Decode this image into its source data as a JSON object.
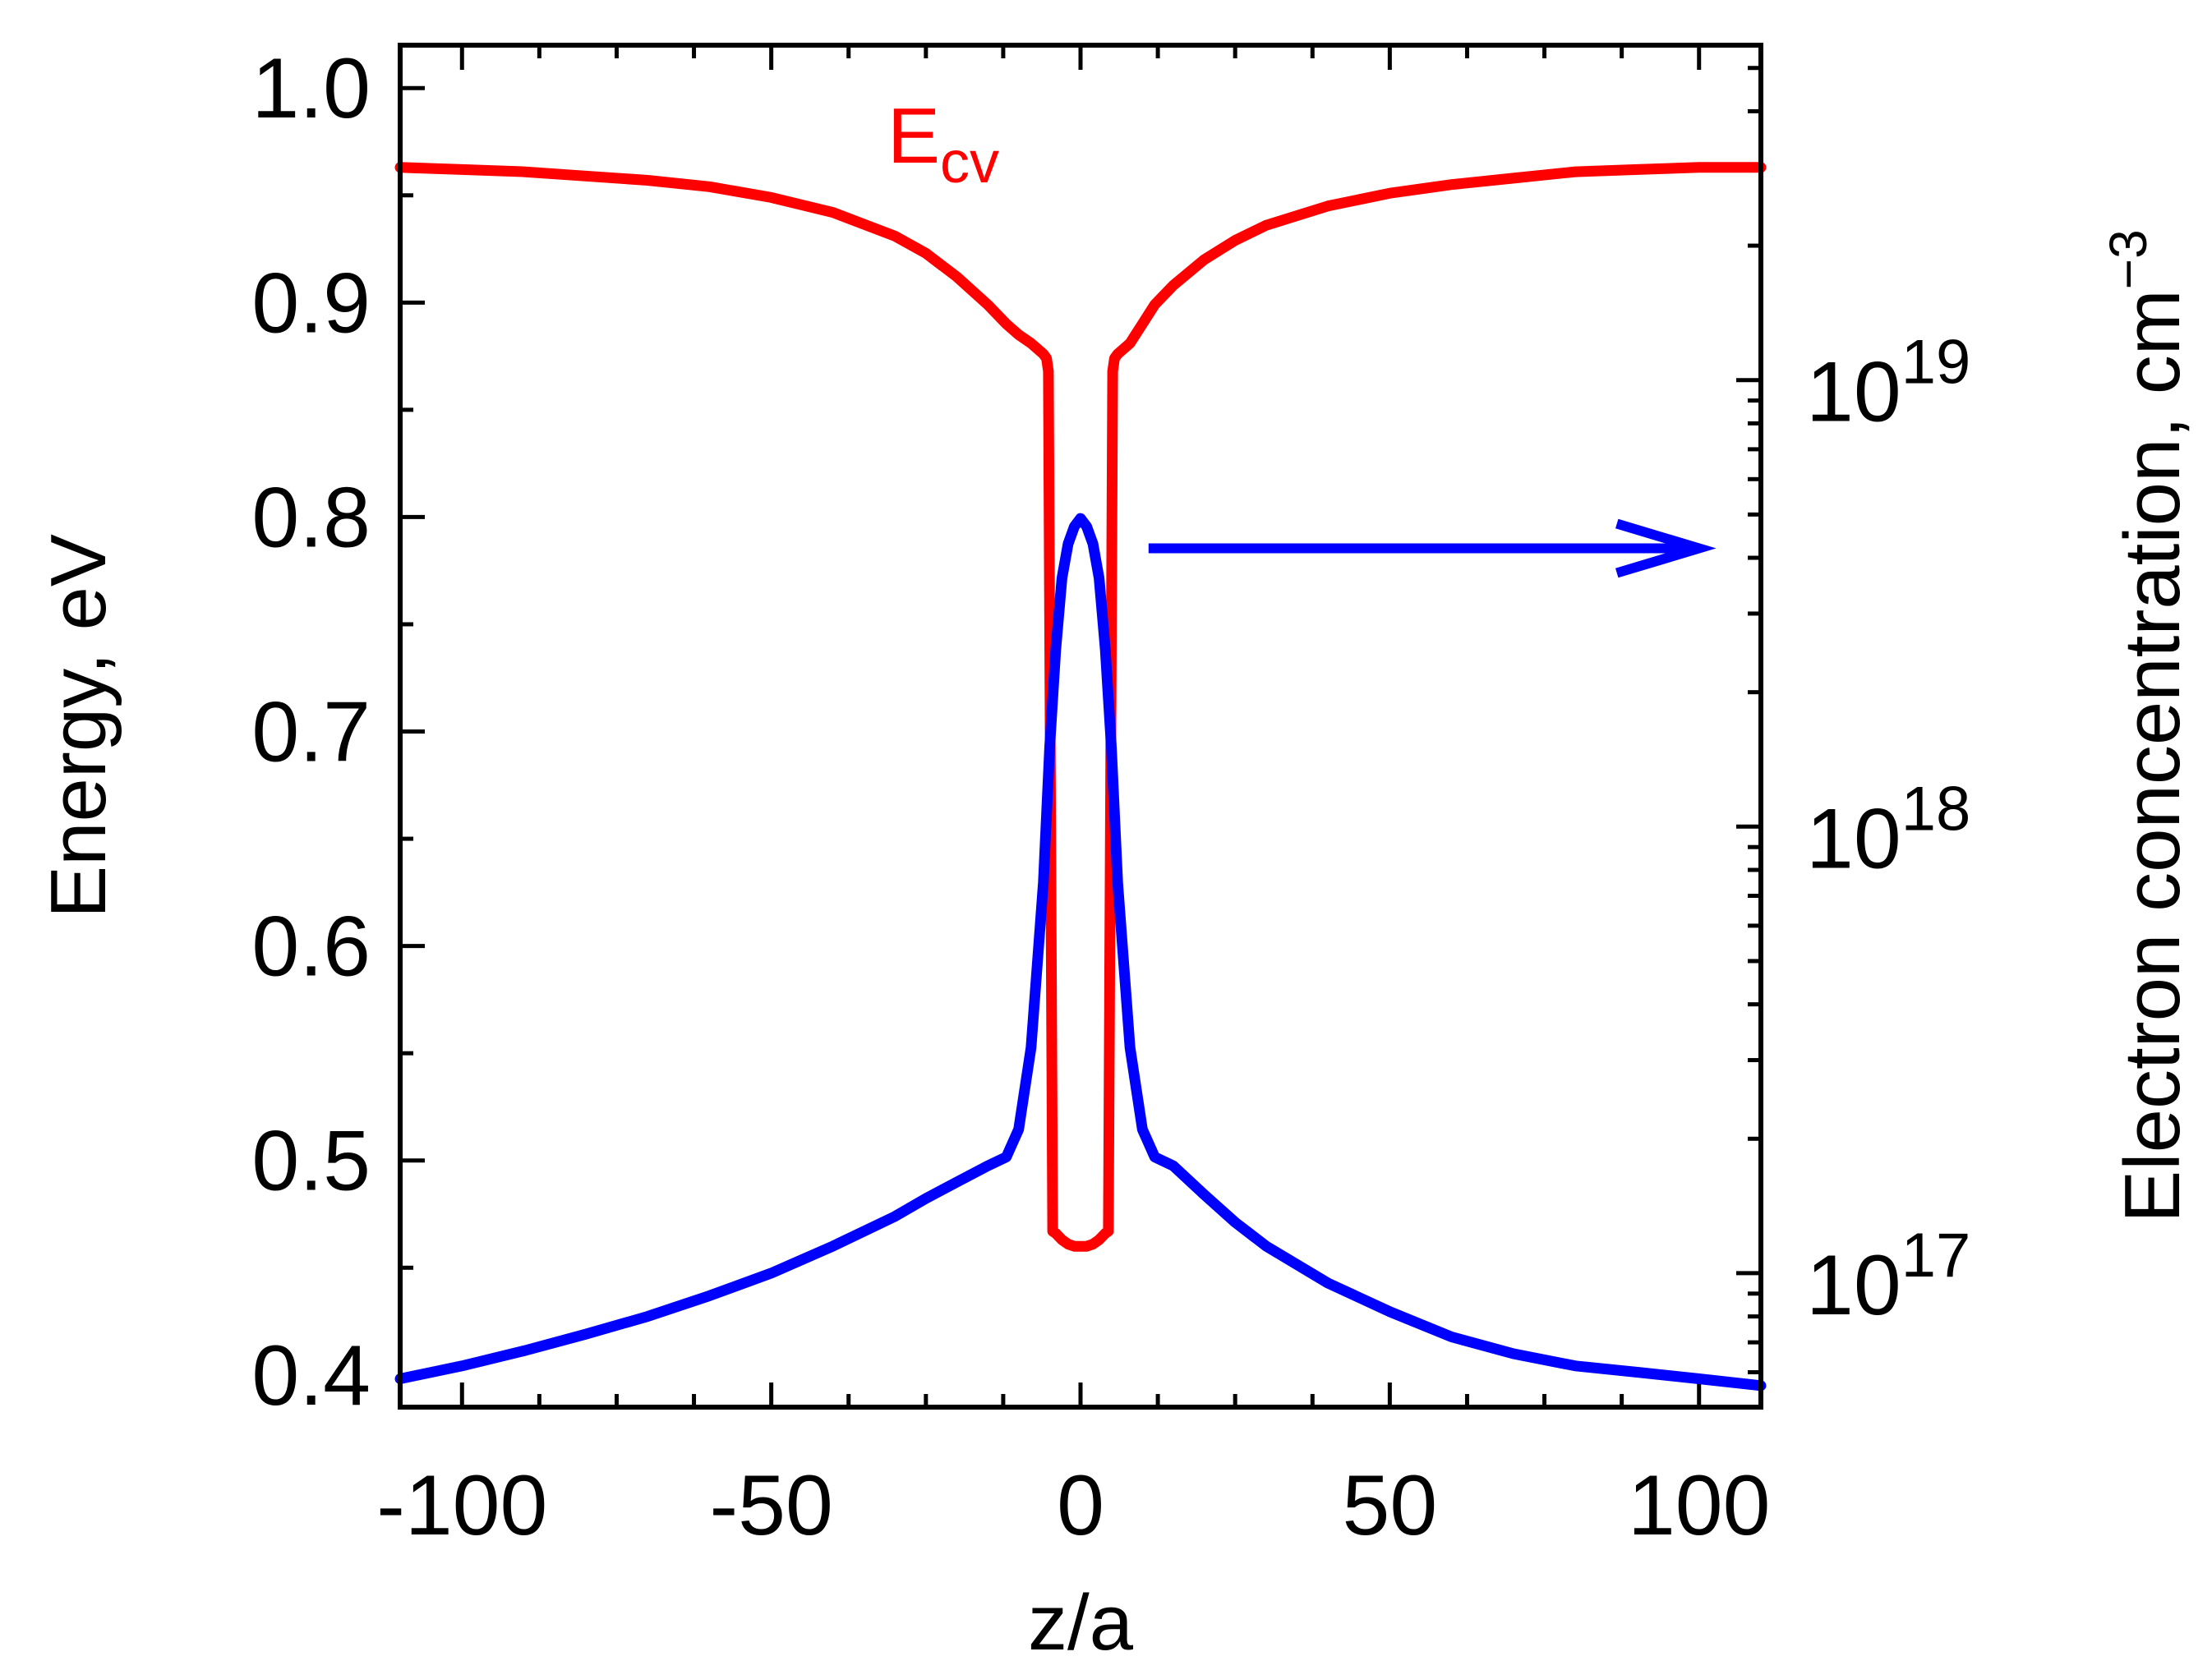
{
  "chart_data": {
    "type": "line",
    "xlabel": "z/a",
    "ylabel": "Energy, eV",
    "y2label": "Electron concentration, cm",
    "y2label_exponent": "−3",
    "xlim": [
      -110,
      110
    ],
    "ylim": [
      0.385,
      1.02
    ],
    "y2lim_log10": [
      16.7,
      19.75
    ],
    "x_ticks": [
      -100,
      -50,
      0,
      50,
      100
    ],
    "x_tick_labels": [
      "-100",
      "-50",
      "0",
      "50",
      "100"
    ],
    "y_ticks": [
      0.4,
      0.5,
      0.6,
      0.7,
      0.8,
      0.9,
      1.0
    ],
    "y_tick_labels": [
      "0.4",
      "0.5",
      "0.6",
      "0.7",
      "0.8",
      "0.9",
      "1.0"
    ],
    "y2_tick_base": "10",
    "y2_ticks_log10": [
      17,
      18,
      19
    ],
    "y2_tick_exponents": [
      "17",
      "18",
      "19"
    ],
    "annotation": {
      "text": "E",
      "subscript": "cv",
      "color": "#ff0000",
      "x": -30,
      "y": 0.955
    },
    "arrow": {
      "from": [
        11,
        4.2e+18
      ],
      "to": [
        100,
        4.2e+18
      ],
      "axis": "right",
      "color": "#0000ff"
    },
    "series": [
      {
        "name": "E_cv",
        "axis": "left",
        "color": "#ff0000",
        "x": [
          -110,
          -100,
          -90,
          -80,
          -70,
          -60,
          -50,
          -40,
          -30,
          -25,
          -20,
          -15,
          -12,
          -10,
          -8,
          -6,
          -5.5,
          -5.2,
          -5,
          -4.5,
          -4,
          -3,
          -2,
          -1,
          0,
          1,
          2,
          3,
          4,
          4.5,
          5,
          5.2,
          5.5,
          6,
          8,
          10,
          12,
          15,
          20,
          25,
          30,
          40,
          50,
          60,
          70,
          80,
          90,
          100,
          110
        ],
        "y": [
          0.963,
          0.962,
          0.961,
          0.959,
          0.957,
          0.954,
          0.949,
          0.942,
          0.931,
          0.923,
          0.912,
          0.899,
          0.89,
          0.885,
          0.881,
          0.876,
          0.874,
          0.868,
          0.75,
          0.467,
          0.466,
          0.463,
          0.461,
          0.46,
          0.46,
          0.46,
          0.461,
          0.463,
          0.466,
          0.467,
          0.75,
          0.868,
          0.874,
          0.876,
          0.881,
          0.89,
          0.899,
          0.908,
          0.92,
          0.929,
          0.936,
          0.945,
          0.951,
          0.955,
          0.958,
          0.961,
          0.962,
          0.963,
          0.963
        ]
      },
      {
        "name": "Electron concentration",
        "axis": "right",
        "color": "#0000ff",
        "x": [
          -110,
          -100,
          -90,
          -80,
          -70,
          -60,
          -50,
          -40,
          -30,
          -25,
          -20,
          -15,
          -12,
          -10,
          -8,
          -6,
          -5,
          -4,
          -3,
          -2,
          -1,
          0,
          1,
          2,
          3,
          4,
          5,
          6,
          8,
          10,
          12,
          15,
          20,
          25,
          30,
          40,
          50,
          60,
          70,
          80,
          90,
          100,
          110
        ],
        "y": [
          5.8e+16,
          6.2e+16,
          6.7e+16,
          7.3e+16,
          8e+16,
          8.9e+16,
          1e+17,
          1.15e+17,
          1.34e+17,
          1.47e+17,
          1.6e+17,
          1.74e+17,
          1.82e+17,
          2.1e+17,
          3.2e+17,
          7.5e+17,
          1.5e+18,
          2.5e+18,
          3.6e+18,
          4.3e+18,
          4.7e+18,
          4.9e+18,
          4.7e+18,
          4.3e+18,
          3.6e+18,
          2.5e+18,
          1.5e+18,
          7.5e+17,
          3.2e+17,
          2.1e+17,
          1.82e+17,
          1.74e+17,
          1.5e+17,
          1.3e+17,
          1.15e+17,
          9.5e+16,
          8.2e+16,
          7.2e+16,
          6.6e+16,
          6.2e+16,
          6e+16,
          5.8e+16,
          5.6e+16
        ]
      }
    ]
  }
}
